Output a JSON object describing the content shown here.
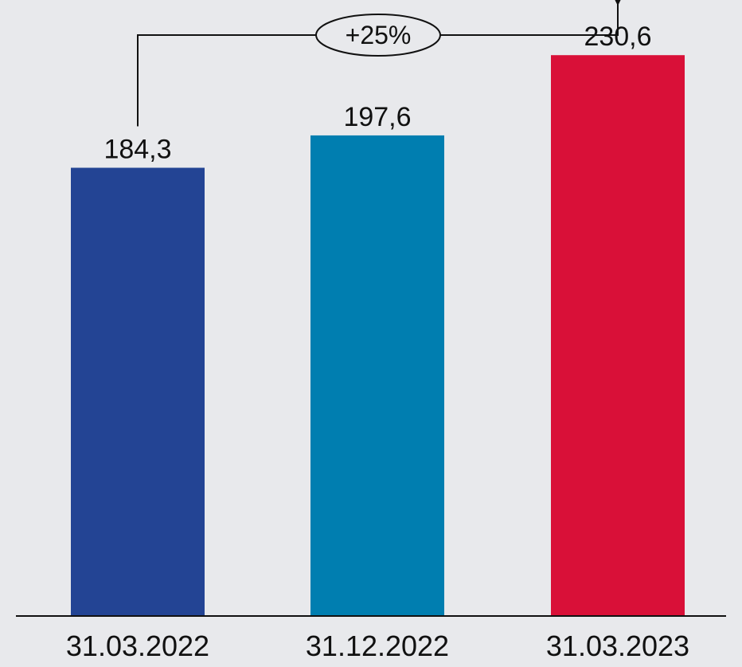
{
  "background_color": "#e8e9ec",
  "chart_data": {
    "type": "bar",
    "categories": [
      "31.03.2022",
      "31.12.2022",
      "31.03.2023"
    ],
    "values": [
      184.3,
      197.6,
      230.6
    ],
    "value_labels": [
      "184,3",
      "197,6",
      "230,6"
    ],
    "colors": [
      "#234494",
      "#007eb0",
      "#d91038"
    ],
    "ylim": [
      0,
      250
    ],
    "title": "",
    "xlabel": "",
    "ylabel": "",
    "grid": false,
    "annotation": {
      "text": "+25%",
      "from_category": "31.03.2022",
      "to_category": "31.03.2023"
    }
  }
}
